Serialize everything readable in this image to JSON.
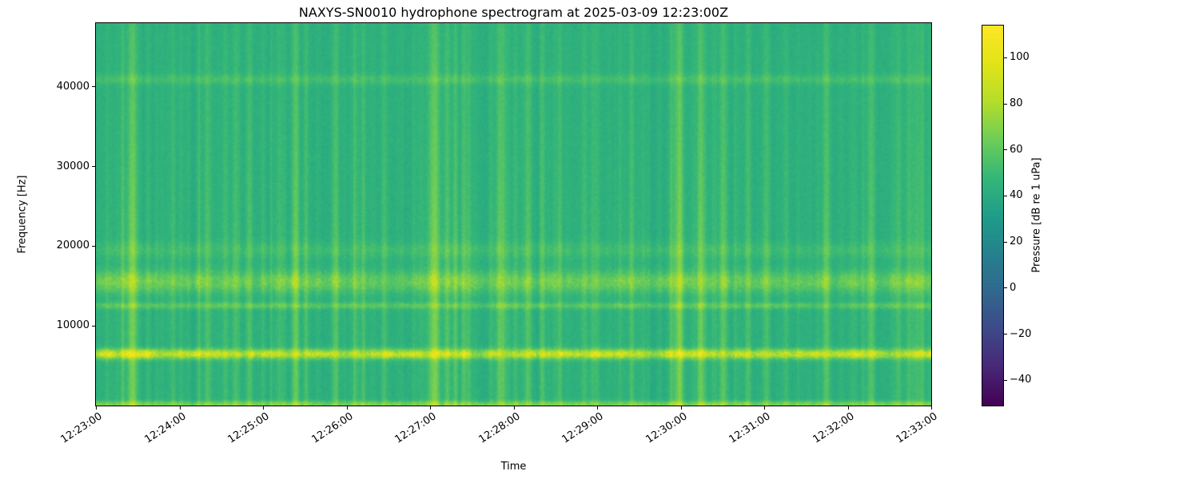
{
  "chart_data": {
    "type": "heatmap",
    "subtype": "spectrogram",
    "title": "NAXYS-SN0010 hydrophone spectrogram at 2025-03-09 12:23:00Z",
    "xlabel": "Time",
    "ylabel": "Frequency [Hz]",
    "x_ticks": [
      "12:23:00",
      "12:24:00",
      "12:25:00",
      "12:26:00",
      "12:27:00",
      "12:28:00",
      "12:29:00",
      "12:30:00",
      "12:31:00",
      "12:32:00",
      "12:33:00"
    ],
    "x_range_seconds": 600,
    "y_ticks": [
      10000,
      20000,
      30000,
      40000
    ],
    "ylim": [
      0,
      48000
    ],
    "grid": false,
    "colormap": "viridis",
    "colorbar": {
      "label": "Pressure [dB re 1 uPa]",
      "ticks": [
        100,
        80,
        60,
        40,
        20,
        0,
        -20,
        -40
      ],
      "vmin": -51,
      "vmax": 114
    },
    "background_level_db": 43,
    "pixel_noise_db": 2.5,
    "column_stripe_db": 4.5,
    "bands": [
      {
        "name": "low-frequency-floor",
        "center_hz": 100,
        "sigma_hz": 260,
        "peak_db": 22,
        "variability": 0.5
      },
      {
        "name": "tonal-6400",
        "center_hz": 6400,
        "sigma_hz": 420,
        "peak_db": 42,
        "variability": 0.9
      },
      {
        "name": "tonal-12500",
        "center_hz": 12500,
        "sigma_hz": 280,
        "peak_db": 15,
        "variability": 0.7
      },
      {
        "name": "band-15500",
        "center_hz": 15500,
        "sigma_hz": 950,
        "peak_db": 19,
        "variability": 0.9
      },
      {
        "name": "band-19500",
        "center_hz": 19500,
        "sigma_hz": 700,
        "peak_db": 7,
        "variability": 0.8
      },
      {
        "name": "tonal-41000",
        "center_hz": 41000,
        "sigma_hz": 450,
        "peak_db": 9,
        "variability": 0.3
      }
    ],
    "transients": [
      {
        "t": 26,
        "db": 26,
        "w": 2.5
      },
      {
        "t": 55,
        "db": 9,
        "w": 1.5
      },
      {
        "t": 80,
        "db": 12,
        "w": 1.8
      },
      {
        "t": 99,
        "db": 8,
        "w": 1.2
      },
      {
        "t": 109,
        "db": 10,
        "w": 1.5
      },
      {
        "t": 132,
        "db": 8,
        "w": 1.2
      },
      {
        "t": 143,
        "db": 12,
        "w": 1.8
      },
      {
        "t": 172,
        "db": 10,
        "w": 1.4
      },
      {
        "t": 192,
        "db": 9,
        "w": 1.2
      },
      {
        "t": 243,
        "db": 22,
        "w": 3.0
      },
      {
        "t": 252,
        "db": 12,
        "w": 1.4
      },
      {
        "t": 264,
        "db": 14,
        "w": 1.6
      },
      {
        "t": 290,
        "db": 16,
        "w": 2.0
      },
      {
        "t": 310,
        "db": 10,
        "w": 1.4
      },
      {
        "t": 333,
        "db": 8,
        "w": 1.2
      },
      {
        "t": 360,
        "db": 7,
        "w": 1.2
      },
      {
        "t": 385,
        "db": 10,
        "w": 1.4
      },
      {
        "t": 419,
        "db": 20,
        "w": 2.5
      },
      {
        "t": 436,
        "db": 18,
        "w": 2.2
      },
      {
        "t": 451,
        "db": 16,
        "w": 2.0
      },
      {
        "t": 468,
        "db": 10,
        "w": 1.4
      },
      {
        "t": 482,
        "db": 12,
        "w": 1.6
      },
      {
        "t": 525,
        "db": 16,
        "w": 2.0
      },
      {
        "t": 557,
        "db": 10,
        "w": 1.4
      },
      {
        "t": 577,
        "db": 12,
        "w": 1.6
      },
      {
        "t": 594,
        "db": 10,
        "w": 1.4
      }
    ],
    "minor_transient_count": 130,
    "seed": 42
  }
}
